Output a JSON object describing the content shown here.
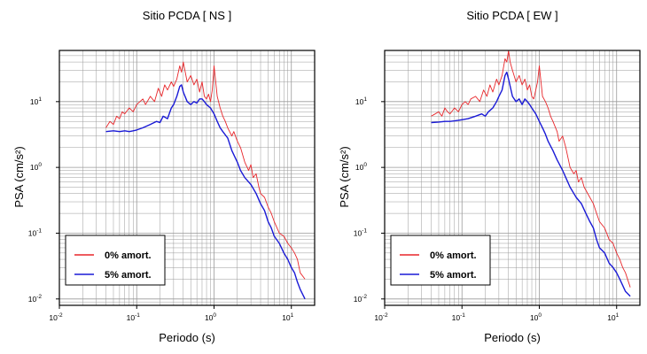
{
  "chart_data": [
    {
      "type": "line",
      "title": "Sitio PCDA [ NS ]",
      "xlabel": "Periodo (s)",
      "ylabel": "PSA (cm/s²)",
      "xscale": "log",
      "yscale": "log",
      "xlim": [
        0.01,
        20
      ],
      "ylim": [
        0.008,
        60
      ],
      "grid": true,
      "legend_placement": "bottom-left",
      "x_tick_labels": [
        {
          "value": 0.01,
          "base": "10",
          "exp": "-2"
        },
        {
          "value": 0.1,
          "base": "10",
          "exp": "-1"
        },
        {
          "value": 1,
          "base": "10",
          "exp": "0"
        },
        {
          "value": 10,
          "base": "10",
          "exp": "1"
        }
      ],
      "y_tick_labels": [
        {
          "value": 0.01,
          "base": "10",
          "exp": "-2"
        },
        {
          "value": 0.1,
          "base": "10",
          "exp": "-1"
        },
        {
          "value": 1,
          "base": "10",
          "exp": "0"
        },
        {
          "value": 10,
          "base": "10",
          "exp": "1"
        }
      ],
      "series": [
        {
          "name": "0% amort.",
          "color": "#e8262a",
          "x": [
            0.04,
            0.045,
            0.05,
            0.055,
            0.06,
            0.065,
            0.07,
            0.08,
            0.09,
            0.1,
            0.11,
            0.12,
            0.13,
            0.15,
            0.17,
            0.19,
            0.21,
            0.23,
            0.25,
            0.28,
            0.3,
            0.33,
            0.36,
            0.38,
            0.4,
            0.42,
            0.45,
            0.5,
            0.55,
            0.6,
            0.65,
            0.7,
            0.75,
            0.8,
            0.85,
            0.9,
            0.95,
            1.0,
            1.1,
            1.2,
            1.3,
            1.4,
            1.5,
            1.7,
            1.8,
            2.0,
            2.2,
            2.5,
            2.8,
            3.0,
            3.2,
            3.5,
            3.8,
            4.0,
            4.5,
            5.0,
            5.5,
            6.0,
            7.0,
            8.0,
            9.0,
            10.0,
            11.0,
            12.0,
            13.0,
            15.0
          ],
          "y": [
            4.0,
            5.0,
            4.5,
            6.0,
            5.5,
            7.0,
            6.5,
            8.0,
            7.0,
            9.0,
            10.0,
            11.0,
            9.0,
            12.0,
            10.0,
            16.0,
            12.0,
            18.0,
            15.0,
            20.0,
            17.0,
            22.0,
            35.0,
            28.0,
            40.0,
            30.0,
            20.0,
            25.0,
            18.0,
            22.0,
            14.0,
            20.0,
            12.0,
            11.0,
            13.0,
            10.0,
            15.0,
            35.0,
            12.0,
            8.0,
            6.0,
            5.0,
            4.0,
            3.0,
            3.5,
            2.5,
            2.0,
            1.2,
            0.9,
            1.1,
            0.7,
            0.8,
            0.5,
            0.4,
            0.35,
            0.25,
            0.2,
            0.15,
            0.1,
            0.09,
            0.07,
            0.06,
            0.05,
            0.04,
            0.025,
            0.02
          ]
        },
        {
          "name": "5% amort.",
          "color": "#1a1ad6",
          "x": [
            0.04,
            0.05,
            0.06,
            0.07,
            0.08,
            0.09,
            0.1,
            0.12,
            0.15,
            0.18,
            0.2,
            0.22,
            0.25,
            0.28,
            0.3,
            0.33,
            0.36,
            0.38,
            0.4,
            0.45,
            0.5,
            0.55,
            0.6,
            0.65,
            0.7,
            0.75,
            0.8,
            0.9,
            1.0,
            1.1,
            1.2,
            1.3,
            1.5,
            1.7,
            2.0,
            2.2,
            2.5,
            2.8,
            3.0,
            3.5,
            4.0,
            4.5,
            5.0,
            5.5,
            6.0,
            7.0,
            8.0,
            9.0,
            10.0,
            11.0,
            12.0,
            13.0,
            15.0
          ],
          "y": [
            3.5,
            3.6,
            3.5,
            3.6,
            3.5,
            3.6,
            3.7,
            4.0,
            4.5,
            5.0,
            4.8,
            6.0,
            5.5,
            8.0,
            9.0,
            12.0,
            17.0,
            18.0,
            14.0,
            10.0,
            9.0,
            10.0,
            9.5,
            11.0,
            11.0,
            10.0,
            9.0,
            8.0,
            6.5,
            5.0,
            4.0,
            3.5,
            2.8,
            1.8,
            1.2,
            0.9,
            0.7,
            0.6,
            0.55,
            0.4,
            0.28,
            0.22,
            0.15,
            0.12,
            0.09,
            0.07,
            0.05,
            0.04,
            0.03,
            0.025,
            0.018,
            0.014,
            0.01
          ]
        }
      ]
    },
    {
      "type": "line",
      "title": "Sitio PCDA [ EW ]",
      "xlabel": "Periodo (s)",
      "ylabel": "PSA (cm/s²)",
      "xscale": "log",
      "yscale": "log",
      "xlim": [
        0.01,
        20
      ],
      "ylim": [
        0.008,
        60
      ],
      "grid": true,
      "legend_placement": "bottom-left",
      "x_tick_labels": [
        {
          "value": 0.01,
          "base": "10",
          "exp": "-2"
        },
        {
          "value": 0.1,
          "base": "10",
          "exp": "-1"
        },
        {
          "value": 1,
          "base": "10",
          "exp": "0"
        },
        {
          "value": 10,
          "base": "10",
          "exp": "1"
        }
      ],
      "y_tick_labels": [
        {
          "value": 0.01,
          "base": "10",
          "exp": "-2"
        },
        {
          "value": 0.1,
          "base": "10",
          "exp": "-1"
        },
        {
          "value": 1,
          "base": "10",
          "exp": "0"
        },
        {
          "value": 10,
          "base": "10",
          "exp": "1"
        }
      ],
      "series": [
        {
          "name": "0% amort.",
          "color": "#e8262a",
          "x": [
            0.04,
            0.045,
            0.05,
            0.055,
            0.06,
            0.065,
            0.07,
            0.08,
            0.09,
            0.1,
            0.11,
            0.12,
            0.13,
            0.15,
            0.17,
            0.19,
            0.21,
            0.23,
            0.25,
            0.28,
            0.3,
            0.33,
            0.36,
            0.38,
            0.4,
            0.42,
            0.45,
            0.5,
            0.55,
            0.6,
            0.65,
            0.7,
            0.75,
            0.8,
            0.85,
            0.9,
            0.95,
            1.0,
            1.1,
            1.2,
            1.3,
            1.4,
            1.5,
            1.7,
            1.8,
            2.0,
            2.2,
            2.5,
            2.8,
            3.0,
            3.2,
            3.5,
            3.8,
            4.0,
            4.5,
            5.0,
            5.5,
            6.0,
            7.0,
            8.0,
            9.0,
            10.0,
            11.0,
            12.0,
            13.0,
            15.0
          ],
          "y": [
            6.0,
            6.5,
            7.0,
            6.0,
            8.0,
            7.0,
            6.5,
            8.0,
            7.0,
            9.0,
            10.0,
            9.0,
            11.0,
            12.0,
            10.0,
            15.0,
            12.0,
            18.0,
            14.0,
            22.0,
            18.0,
            25.0,
            45.0,
            40.0,
            60.0,
            40.0,
            30.0,
            20.0,
            25.0,
            18.0,
            22.0,
            15.0,
            18.0,
            12.0,
            11.0,
            15.0,
            20.0,
            35.0,
            12.0,
            10.0,
            8.0,
            6.0,
            5.0,
            3.5,
            2.5,
            3.0,
            2.0,
            1.0,
            0.8,
            0.9,
            0.6,
            0.7,
            0.5,
            0.45,
            0.35,
            0.28,
            0.2,
            0.15,
            0.12,
            0.08,
            0.07,
            0.05,
            0.04,
            0.03,
            0.025,
            0.015
          ]
        },
        {
          "name": "5% amort.",
          "color": "#1a1ad6",
          "x": [
            0.04,
            0.05,
            0.06,
            0.07,
            0.08,
            0.09,
            0.1,
            0.12,
            0.15,
            0.18,
            0.2,
            0.22,
            0.25,
            0.28,
            0.3,
            0.33,
            0.36,
            0.38,
            0.4,
            0.45,
            0.5,
            0.55,
            0.6,
            0.65,
            0.7,
            0.75,
            0.8,
            0.9,
            1.0,
            1.1,
            1.2,
            1.3,
            1.5,
            1.7,
            2.0,
            2.2,
            2.5,
            2.8,
            3.0,
            3.5,
            4.0,
            4.5,
            5.0,
            5.5,
            6.0,
            7.0,
            8.0,
            9.0,
            10.0,
            11.0,
            12.0,
            13.0,
            15.0
          ],
          "y": [
            4.8,
            4.9,
            5.0,
            5.0,
            5.1,
            5.2,
            5.3,
            5.5,
            6.0,
            6.5,
            6.0,
            7.0,
            8.0,
            10.0,
            12.0,
            15.0,
            25.0,
            28.0,
            22.0,
            12.0,
            10.0,
            11.0,
            9.0,
            11.0,
            10.0,
            9.0,
            8.0,
            6.5,
            5.0,
            4.0,
            3.2,
            2.5,
            1.8,
            1.3,
            0.9,
            0.7,
            0.5,
            0.4,
            0.35,
            0.28,
            0.2,
            0.15,
            0.12,
            0.08,
            0.06,
            0.05,
            0.035,
            0.03,
            0.025,
            0.02,
            0.016,
            0.013,
            0.011
          ]
        }
      ]
    }
  ]
}
